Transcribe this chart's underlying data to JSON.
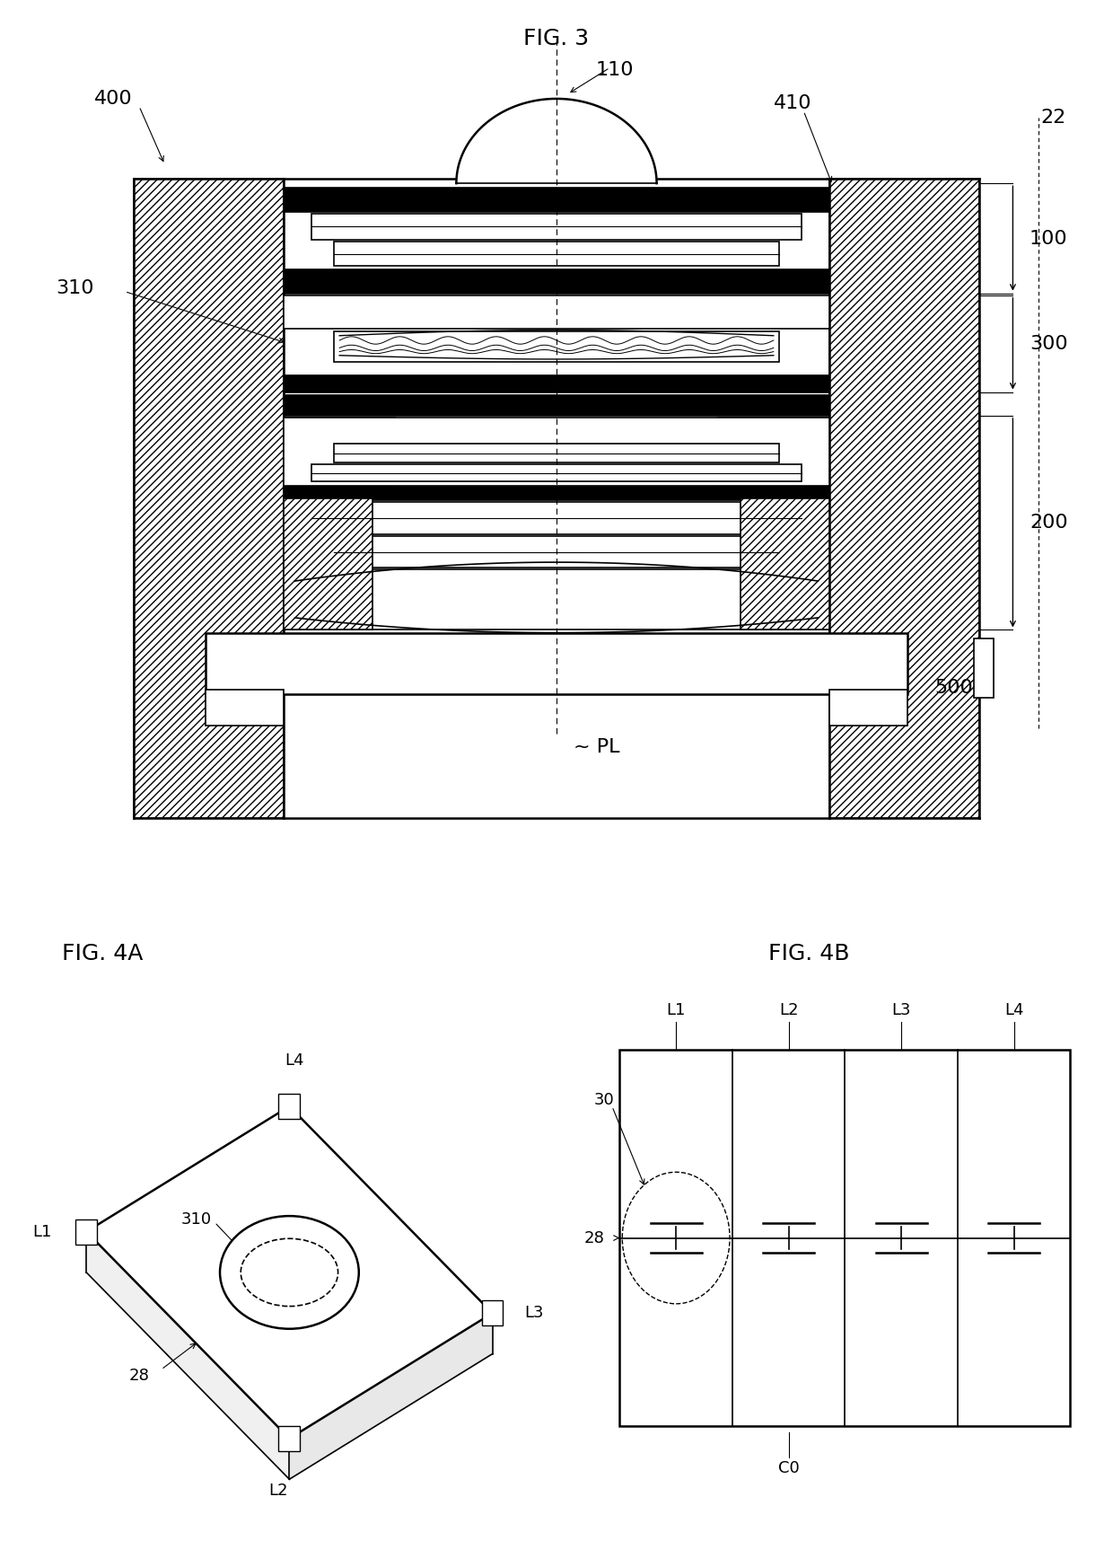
{
  "fig3_title": "FIG. 3",
  "fig4a_title": "FIG. 4A",
  "fig4b_title": "FIG. 4B",
  "bg_color": "#ffffff",
  "line_color": "#000000",
  "label_fontsize": 16,
  "title_fontsize": 18
}
